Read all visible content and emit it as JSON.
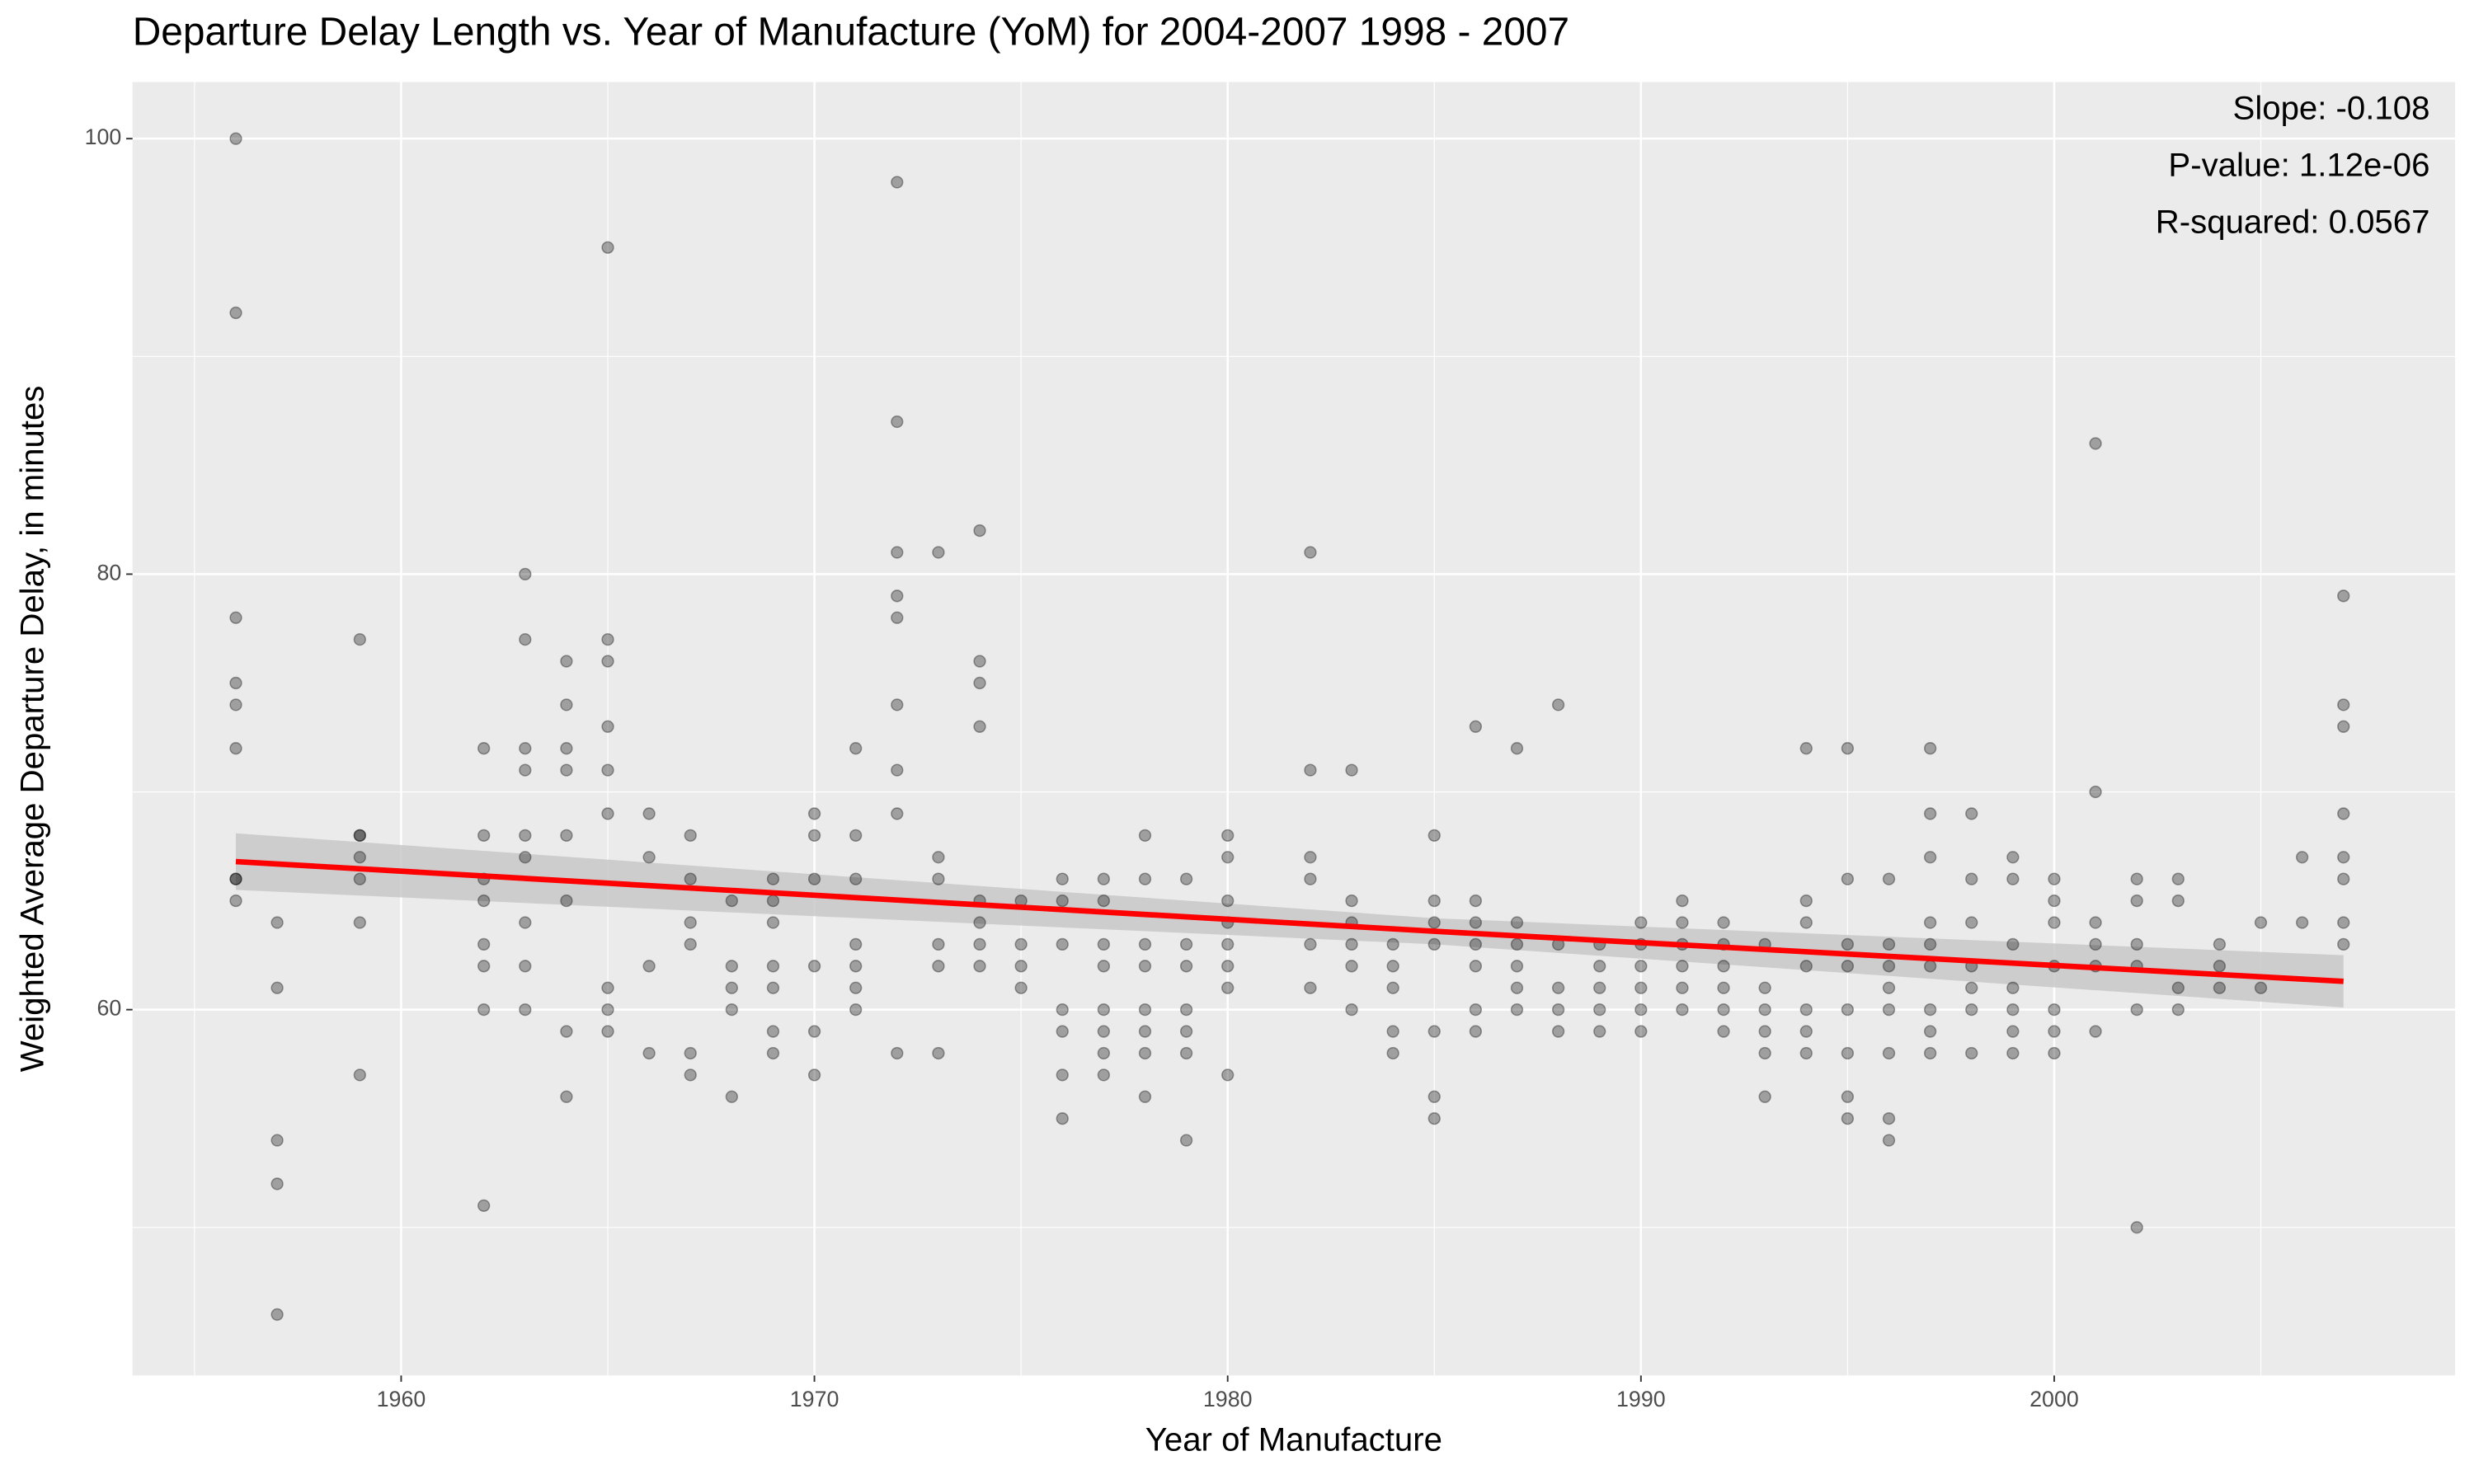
{
  "chart_data": {
    "type": "scatter",
    "title": "Departure Delay Length vs. Year of Manufacture (YoM) for 2004-2007 1998 - 2007",
    "x_label": "Year of Manufacture",
    "y_label": "Weighted Average Departure Delay, in minutes",
    "annotations": [
      "Slope: -0.108",
      "P-value: 1.12e-06",
      "R-squared: 0.0567"
    ],
    "xlim": [
      1953.5,
      2009.7
    ],
    "ylim": [
      43.2,
      102.6
    ],
    "xticks": [
      1960,
      1970,
      1980,
      1990,
      2000
    ],
    "yticks": [
      60,
      80,
      100
    ],
    "grid": true,
    "color": "#000000",
    "x": [
      1956,
      1956,
      1956,
      1956,
      1956,
      1956,
      1956,
      1956,
      1956,
      1957,
      1957,
      1957,
      1957,
      1957,
      1959,
      1959,
      1959,
      1959,
      1959,
      1959,
      1959,
      1962,
      1962,
      1962,
      1962,
      1962,
      1962,
      1962,
      1962,
      1963,
      1963,
      1963,
      1963,
      1963,
      1963,
      1963,
      1963,
      1963,
      1964,
      1964,
      1964,
      1964,
      1964,
      1964,
      1964,
      1964,
      1965,
      1965,
      1965,
      1965,
      1965,
      1965,
      1965,
      1965,
      1965,
      1966,
      1966,
      1966,
      1966,
      1967,
      1967,
      1967,
      1967,
      1967,
      1967,
      1968,
      1968,
      1968,
      1968,
      1968,
      1969,
      1969,
      1969,
      1969,
      1969,
      1969,
      1969,
      1970,
      1970,
      1970,
      1970,
      1970,
      1970,
      1971,
      1971,
      1971,
      1971,
      1971,
      1971,
      1971,
      1972,
      1972,
      1972,
      1972,
      1972,
      1972,
      1972,
      1972,
      1972,
      1973,
      1973,
      1973,
      1973,
      1973,
      1973,
      1974,
      1974,
      1974,
      1974,
      1974,
      1974,
      1974,
      1974,
      1975,
      1975,
      1975,
      1975,
      1976,
      1976,
      1976,
      1976,
      1976,
      1976,
      1976,
      1977,
      1977,
      1977,
      1977,
      1977,
      1977,
      1977,
      1977,
      1978,
      1978,
      1978,
      1978,
      1978,
      1978,
      1978,
      1978,
      1979,
      1979,
      1979,
      1979,
      1979,
      1979,
      1979,
      1980,
      1980,
      1980,
      1980,
      1980,
      1980,
      1980,
      1980,
      1982,
      1982,
      1982,
      1982,
      1982,
      1982,
      1983,
      1983,
      1983,
      1983,
      1983,
      1983,
      1984,
      1984,
      1984,
      1984,
      1984,
      1985,
      1985,
      1985,
      1985,
      1985,
      1985,
      1985,
      1986,
      1986,
      1986,
      1986,
      1986,
      1986,
      1986,
      1987,
      1987,
      1987,
      1987,
      1987,
      1987,
      1988,
      1988,
      1988,
      1988,
      1988,
      1989,
      1989,
      1989,
      1989,
      1989,
      1990,
      1990,
      1990,
      1990,
      1990,
      1990,
      1991,
      1991,
      1991,
      1991,
      1991,
      1991,
      1992,
      1992,
      1992,
      1992,
      1992,
      1992,
      1993,
      1993,
      1993,
      1993,
      1993,
      1993,
      1994,
      1994,
      1994,
      1994,
      1994,
      1994,
      1994,
      1995,
      1995,
      1995,
      1995,
      1995,
      1995,
      1995,
      1995,
      1996,
      1996,
      1996,
      1996,
      1996,
      1996,
      1996,
      1996,
      1997,
      1997,
      1997,
      1997,
      1997,
      1997,
      1997,
      1997,
      1997,
      1998,
      1998,
      1998,
      1998,
      1998,
      1998,
      1998,
      1999,
      1999,
      1999,
      1999,
      1999,
      1999,
      1999,
      2000,
      2000,
      2000,
      2000,
      2000,
      2000,
      2000,
      2001,
      2001,
      2001,
      2001,
      2001,
      2001,
      2002,
      2002,
      2002,
      2002,
      2002,
      2002,
      2003,
      2003,
      2003,
      2003,
      2004,
      2004,
      2004,
      2005,
      2005,
      2006,
      2006,
      2007,
      2007,
      2007,
      2007,
      2007,
      2007,
      2007,
      2007
    ],
    "values": [
      100,
      92,
      78,
      75,
      74,
      72,
      66,
      66,
      65,
      64,
      61,
      54,
      52,
      46,
      77,
      68,
      68,
      67,
      66,
      64,
      57,
      72,
      68,
      66,
      65,
      63,
      62,
      60,
      51,
      80,
      77,
      72,
      71,
      68,
      67,
      64,
      62,
      60,
      76,
      74,
      72,
      71,
      68,
      65,
      59,
      56,
      95,
      77,
      76,
      73,
      71,
      69,
      61,
      60,
      59,
      69,
      67,
      62,
      58,
      68,
      66,
      64,
      63,
      58,
      57,
      65,
      62,
      61,
      60,
      56,
      66,
      65,
      64,
      62,
      61,
      59,
      58,
      69,
      68,
      66,
      62,
      59,
      57,
      72,
      68,
      66,
      63,
      62,
      61,
      60,
      98,
      87,
      81,
      79,
      78,
      74,
      71,
      69,
      58,
      81,
      67,
      66,
      63,
      62,
      58,
      82,
      76,
      75,
      73,
      65,
      64,
      63,
      62,
      65,
      63,
      62,
      61,
      66,
      65,
      63,
      60,
      59,
      57,
      55,
      66,
      65,
      63,
      62,
      60,
      59,
      58,
      57,
      68,
      66,
      63,
      62,
      60,
      59,
      58,
      56,
      66,
      63,
      62,
      60,
      59,
      58,
      54,
      68,
      67,
      65,
      64,
      63,
      62,
      61,
      57,
      81,
      71,
      67,
      66,
      63,
      61,
      71,
      65,
      64,
      63,
      62,
      60,
      63,
      62,
      61,
      59,
      58,
      68,
      65,
      64,
      63,
      59,
      56,
      55,
      73,
      65,
      64,
      63,
      62,
      60,
      59,
      72,
      64,
      63,
      62,
      61,
      60,
      74,
      63,
      61,
      60,
      59,
      63,
      62,
      61,
      60,
      59,
      64,
      63,
      62,
      61,
      60,
      59,
      65,
      64,
      63,
      62,
      61,
      60,
      64,
      63,
      62,
      61,
      60,
      59,
      63,
      61,
      60,
      59,
      58,
      56,
      72,
      65,
      64,
      62,
      60,
      59,
      58,
      72,
      66,
      63,
      62,
      60,
      58,
      56,
      55,
      66,
      63,
      62,
      61,
      60,
      58,
      55,
      54,
      72,
      69,
      67,
      64,
      63,
      62,
      60,
      59,
      58,
      69,
      66,
      64,
      62,
      61,
      60,
      58,
      67,
      66,
      63,
      61,
      60,
      59,
      58,
      66,
      65,
      64,
      62,
      60,
      59,
      58,
      86,
      70,
      64,
      63,
      62,
      59,
      66,
      65,
      63,
      62,
      60,
      50,
      66,
      65,
      61,
      60,
      63,
      62,
      61,
      64,
      61,
      67,
      64,
      79,
      74,
      73,
      69,
      67,
      66,
      64,
      63
    ],
    "fit": {
      "color": "#ff0000",
      "band_color": "#c8c8c8",
      "x": [
        1956,
        1985,
        2007
      ],
      "y": [
        66.8,
        63.6,
        61.3
      ],
      "lower": [
        65.5,
        63.0,
        60.1
      ],
      "upper": [
        68.1,
        64.2,
        62.5
      ]
    }
  }
}
